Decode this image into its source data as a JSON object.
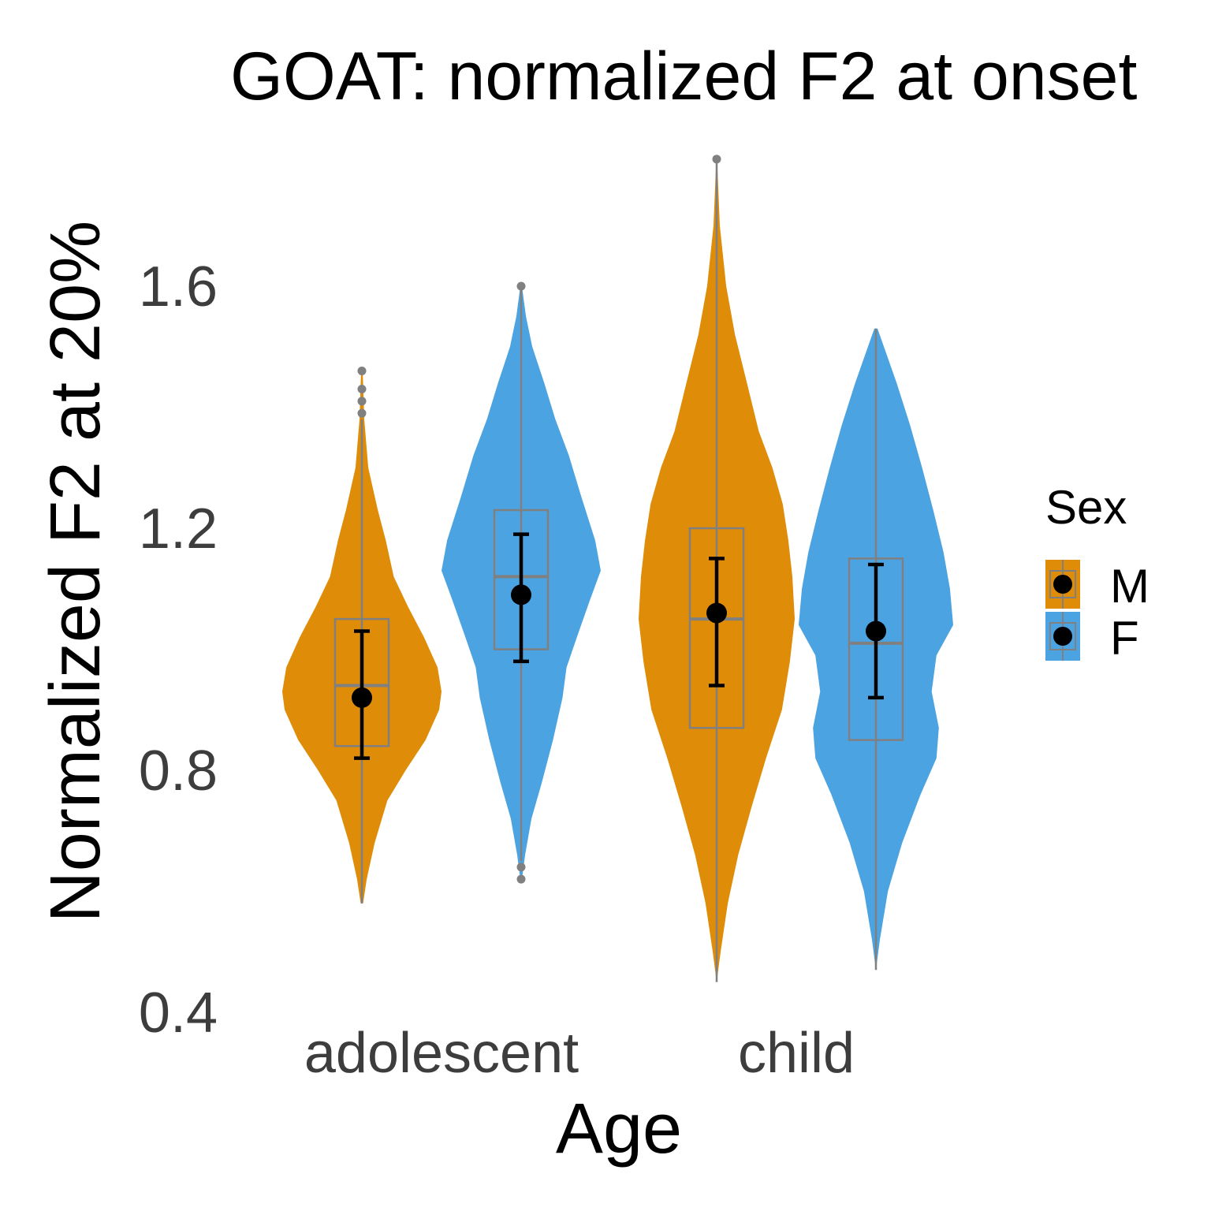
{
  "chart_data": {
    "type": "violin",
    "title": "GOAT: normalized F2 at onset",
    "xlabel": "Age",
    "ylabel": "Normalized F2 at 20%",
    "ylim": [
      0.4,
      1.8
    ],
    "yticks": [
      "0.4",
      "0.8",
      "1.2",
      "1.6"
    ],
    "categories": [
      "adolescent",
      "child"
    ],
    "legend": {
      "title": "Sex",
      "position": "right"
    },
    "grid": false,
    "series": [
      {
        "name": "M",
        "color": "#DF8C08",
        "groups": [
          {
            "category": "adolescent",
            "mean": 0.92,
            "ci_low": 0.82,
            "ci_high": 1.03,
            "box": {
              "q1": 0.84,
              "median": 0.94,
              "q3": 1.05
            },
            "whisker": [
              0.58,
              1.38
            ],
            "outliers": [
              1.39,
              1.41,
              1.43,
              1.46
            ],
            "density": [
              [
                0.58,
                0.015
              ],
              [
                0.62,
                0.06
              ],
              [
                0.68,
                0.16
              ],
              [
                0.75,
                0.32
              ],
              [
                0.8,
                0.55
              ],
              [
                0.85,
                0.8
              ],
              [
                0.9,
                0.97
              ],
              [
                0.93,
                1.0
              ],
              [
                0.97,
                0.95
              ],
              [
                1.02,
                0.78
              ],
              [
                1.07,
                0.58
              ],
              [
                1.12,
                0.4
              ],
              [
                1.18,
                0.3
              ],
              [
                1.23,
                0.2
              ],
              [
                1.3,
                0.08
              ],
              [
                1.38,
                0.03
              ],
              [
                1.46,
                0.01
              ]
            ]
          },
          {
            "category": "child",
            "mean": 1.06,
            "ci_low": 0.94,
            "ci_high": 1.15,
            "box": {
              "q1": 0.87,
              "median": 1.05,
              "q3": 1.2
            },
            "whisker": [
              0.45,
              1.81
            ],
            "outliers": [
              1.81
            ],
            "density": [
              [
                0.45,
                0.0
              ],
              [
                0.5,
                0.05
              ],
              [
                0.58,
                0.14
              ],
              [
                0.66,
                0.27
              ],
              [
                0.74,
                0.44
              ],
              [
                0.82,
                0.62
              ],
              [
                0.9,
                0.82
              ],
              [
                0.98,
                0.92
              ],
              [
                1.05,
                0.98
              ],
              [
                1.12,
                0.95
              ],
              [
                1.18,
                0.9
              ],
              [
                1.24,
                0.83
              ],
              [
                1.3,
                0.7
              ],
              [
                1.36,
                0.53
              ],
              [
                1.44,
                0.38
              ],
              [
                1.52,
                0.23
              ],
              [
                1.6,
                0.12
              ],
              [
                1.7,
                0.04
              ],
              [
                1.81,
                0.005
              ]
            ]
          }
        ]
      },
      {
        "name": "F",
        "color": "#4BA3E2",
        "groups": [
          {
            "category": "adolescent",
            "mean": 1.09,
            "ci_low": 0.98,
            "ci_high": 1.19,
            "box": {
              "q1": 1.0,
              "median": 1.12,
              "q3": 1.23
            },
            "whisker": [
              0.65,
              1.6
            ],
            "outliers": [
              0.62,
              0.64,
              1.6
            ],
            "density": [
              [
                0.62,
                0.01
              ],
              [
                0.66,
                0.05
              ],
              [
                0.72,
                0.13
              ],
              [
                0.78,
                0.26
              ],
              [
                0.85,
                0.4
              ],
              [
                0.92,
                0.52
              ],
              [
                0.97,
                0.57
              ],
              [
                1.02,
                0.7
              ],
              [
                1.08,
                0.86
              ],
              [
                1.13,
                1.0
              ],
              [
                1.18,
                0.93
              ],
              [
                1.25,
                0.76
              ],
              [
                1.32,
                0.6
              ],
              [
                1.38,
                0.43
              ],
              [
                1.44,
                0.29
              ],
              [
                1.5,
                0.14
              ],
              [
                1.55,
                0.06
              ],
              [
                1.6,
                0.01
              ]
            ]
          },
          {
            "category": "child",
            "mean": 1.03,
            "ci_low": 0.92,
            "ci_high": 1.14,
            "box": {
              "q1": 0.85,
              "median": 1.01,
              "q3": 1.15
            },
            "whisker": [
              0.47,
              1.53
            ],
            "outliers": [],
            "density": [
              [
                0.47,
                0.0
              ],
              [
                0.52,
                0.05
              ],
              [
                0.6,
                0.15
              ],
              [
                0.68,
                0.33
              ],
              [
                0.76,
                0.56
              ],
              [
                0.82,
                0.76
              ],
              [
                0.87,
                0.79
              ],
              [
                0.93,
                0.7
              ],
              [
                0.99,
                0.76
              ],
              [
                1.04,
                0.97
              ],
              [
                1.1,
                0.93
              ],
              [
                1.16,
                0.85
              ],
              [
                1.23,
                0.72
              ],
              [
                1.3,
                0.58
              ],
              [
                1.37,
                0.43
              ],
              [
                1.44,
                0.26
              ],
              [
                1.5,
                0.1
              ],
              [
                1.53,
                0.02
              ]
            ]
          }
        ]
      }
    ]
  }
}
